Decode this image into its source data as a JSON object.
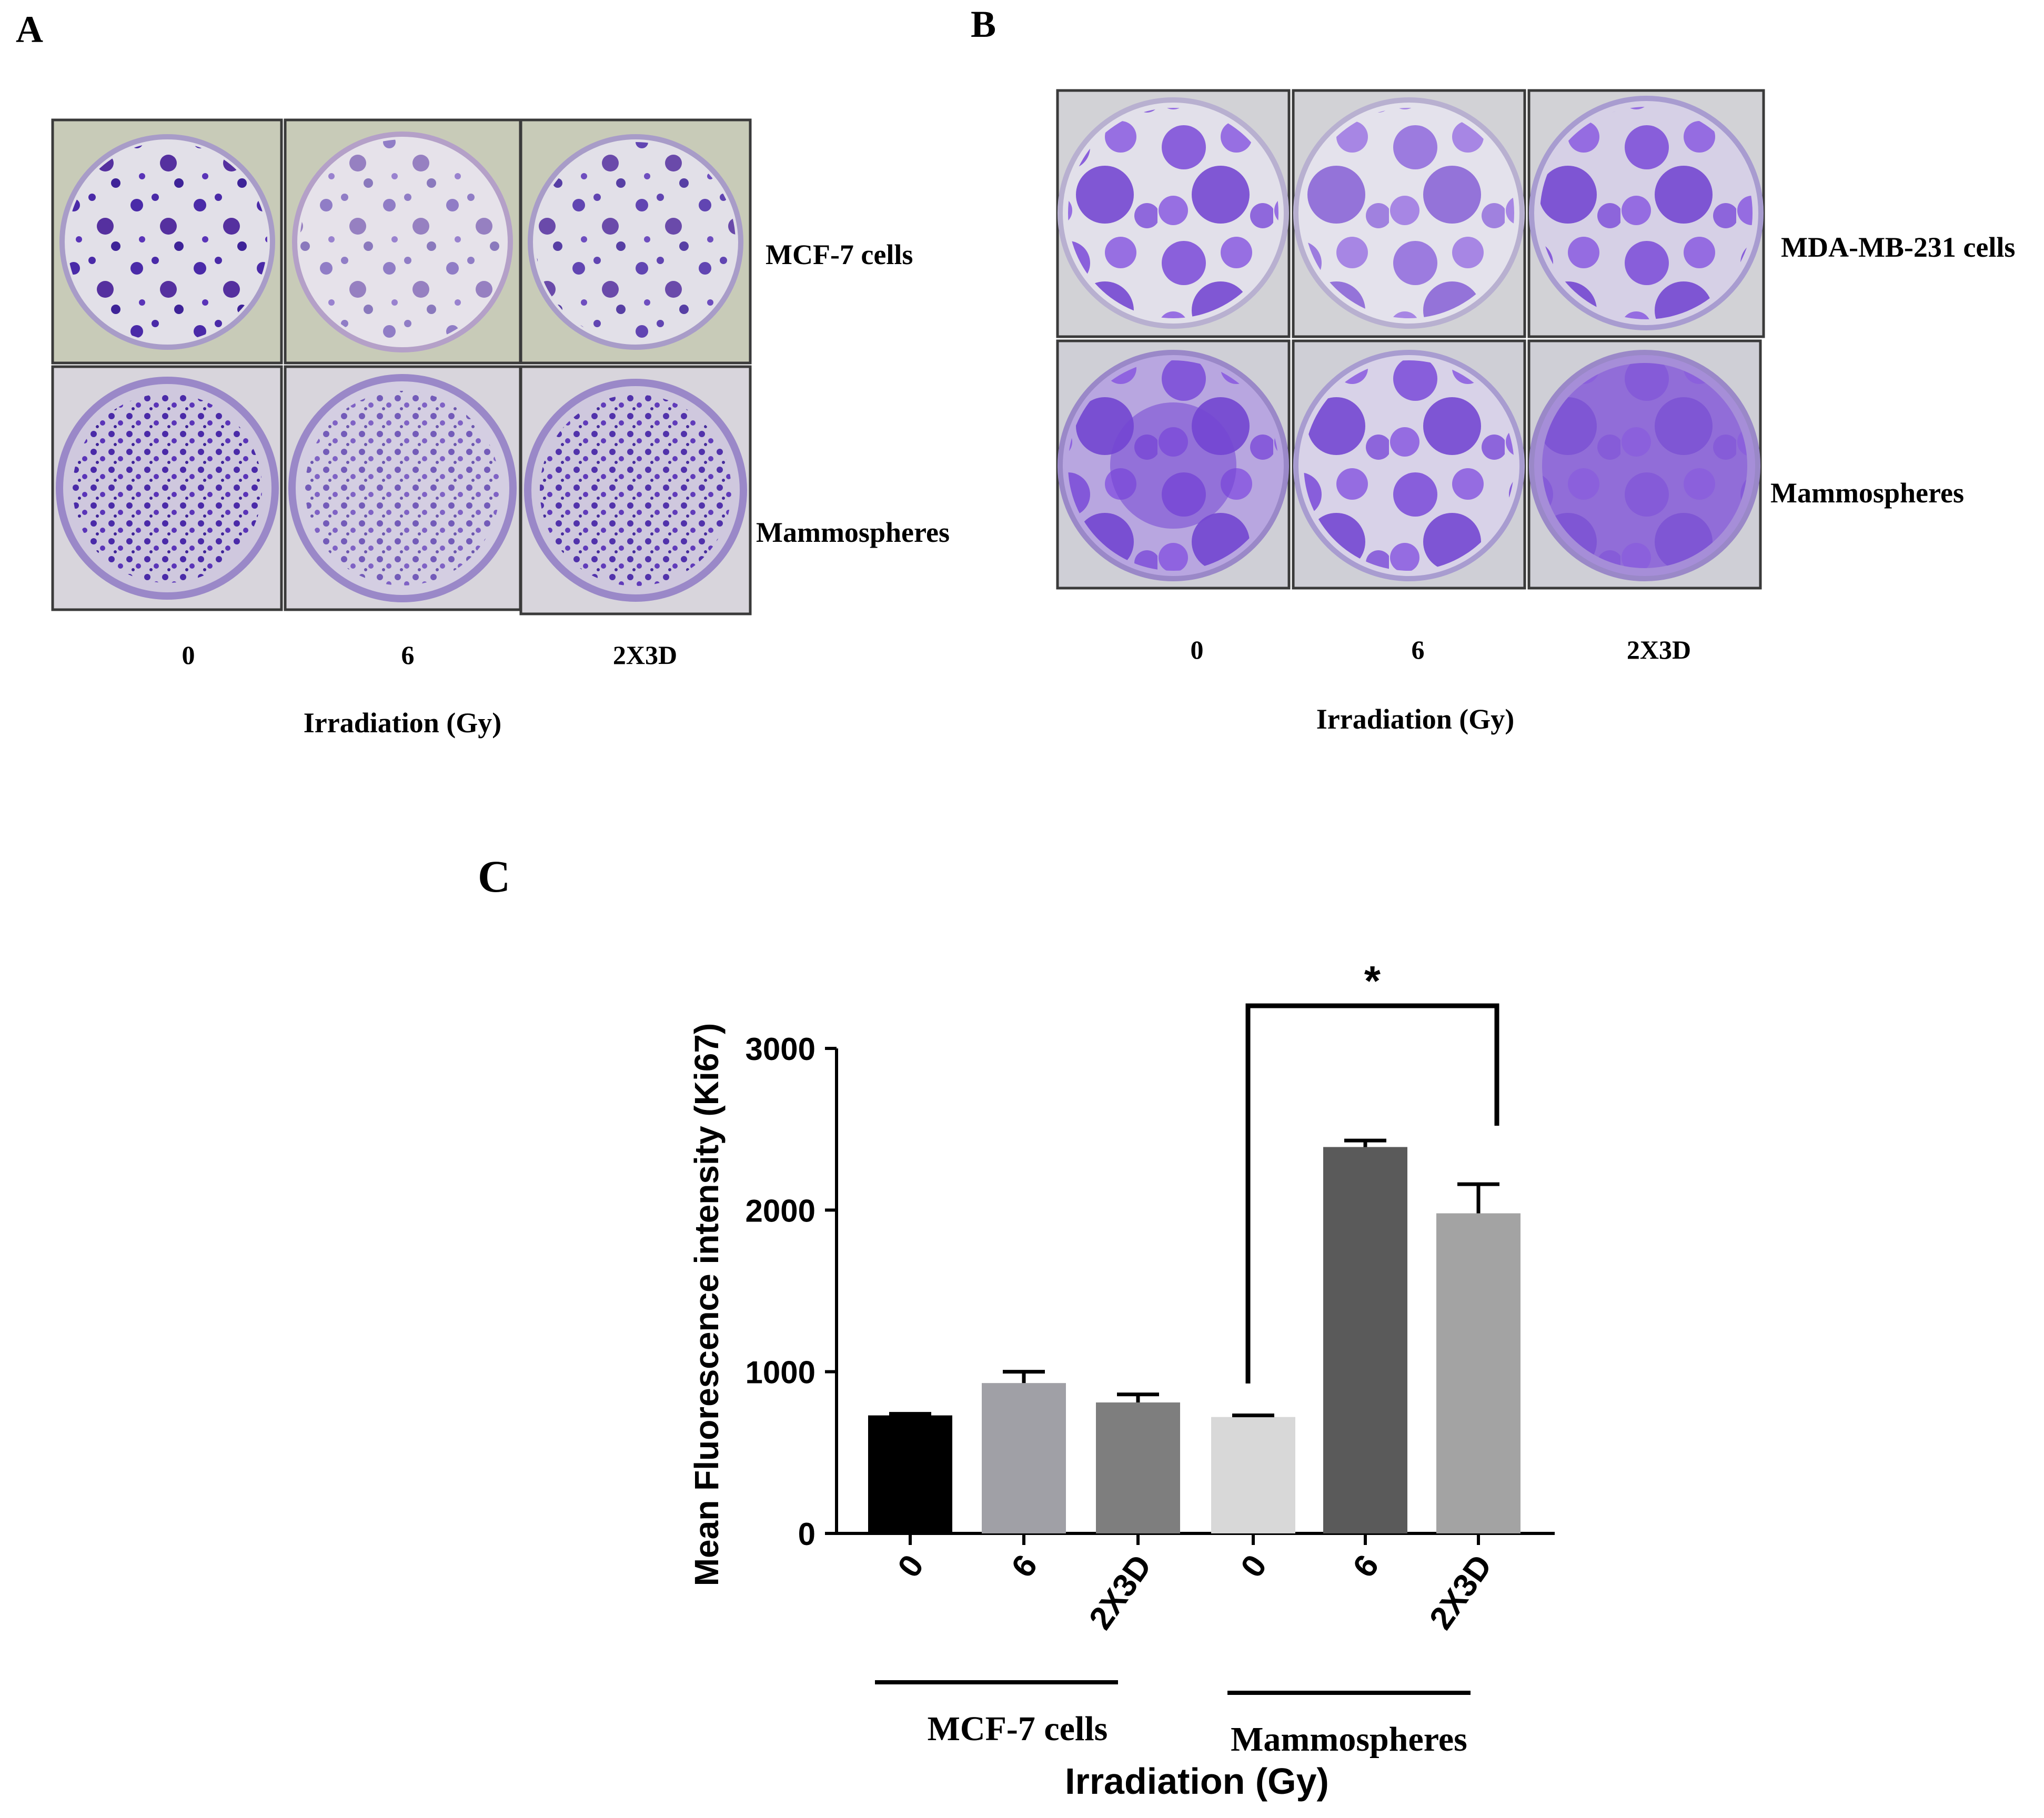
{
  "panels": {
    "a": {
      "letter": "A",
      "row_labels": [
        "MCF-7 cells",
        "Mammospheres"
      ],
      "col_labels": [
        "0",
        "6",
        "2X3D"
      ],
      "xlabel": "Irradiation (Gy)"
    },
    "b": {
      "letter": "B",
      "row_labels": [
        "MDA-MB-231 cells",
        "Mammospheres"
      ],
      "col_labels": [
        "0",
        "6",
        "2X3D"
      ],
      "xlabel": "Irradiation (Gy)"
    },
    "c": {
      "letter": "C"
    }
  },
  "colors": {
    "dish_stain": "#6a3fc8",
    "dish_bg": "#dcd8e4",
    "photo_frame": "#3a3a3a"
  },
  "chart_data": {
    "type": "bar",
    "ylabel": "Mean Fluorescence intensity (Ki67)",
    "xlabel": "Irradiation (Gy)",
    "ylim": [
      0,
      3000
    ],
    "yticks": [
      "0",
      "1000",
      "2000",
      "3000"
    ],
    "categories": [
      "0",
      "6",
      "2X3D",
      "0",
      "6",
      "2X3D"
    ],
    "values": [
      730,
      930,
      810,
      720,
      2390,
      1980
    ],
    "errors": [
      10,
      70,
      50,
      10,
      40,
      180
    ],
    "colors": [
      "#000000",
      "#a0a0a6",
      "#7e7e7e",
      "#d8d8d8",
      "#5a5a5a",
      "#a3a3a3"
    ],
    "groups": [
      {
        "name": "MCF-7 cells",
        "indices": [
          0,
          1,
          2
        ]
      },
      {
        "name": "Mammospheres",
        "indices": [
          3,
          4,
          5
        ]
      }
    ],
    "significance": {
      "from": 3,
      "to": 5,
      "label": "*"
    }
  }
}
